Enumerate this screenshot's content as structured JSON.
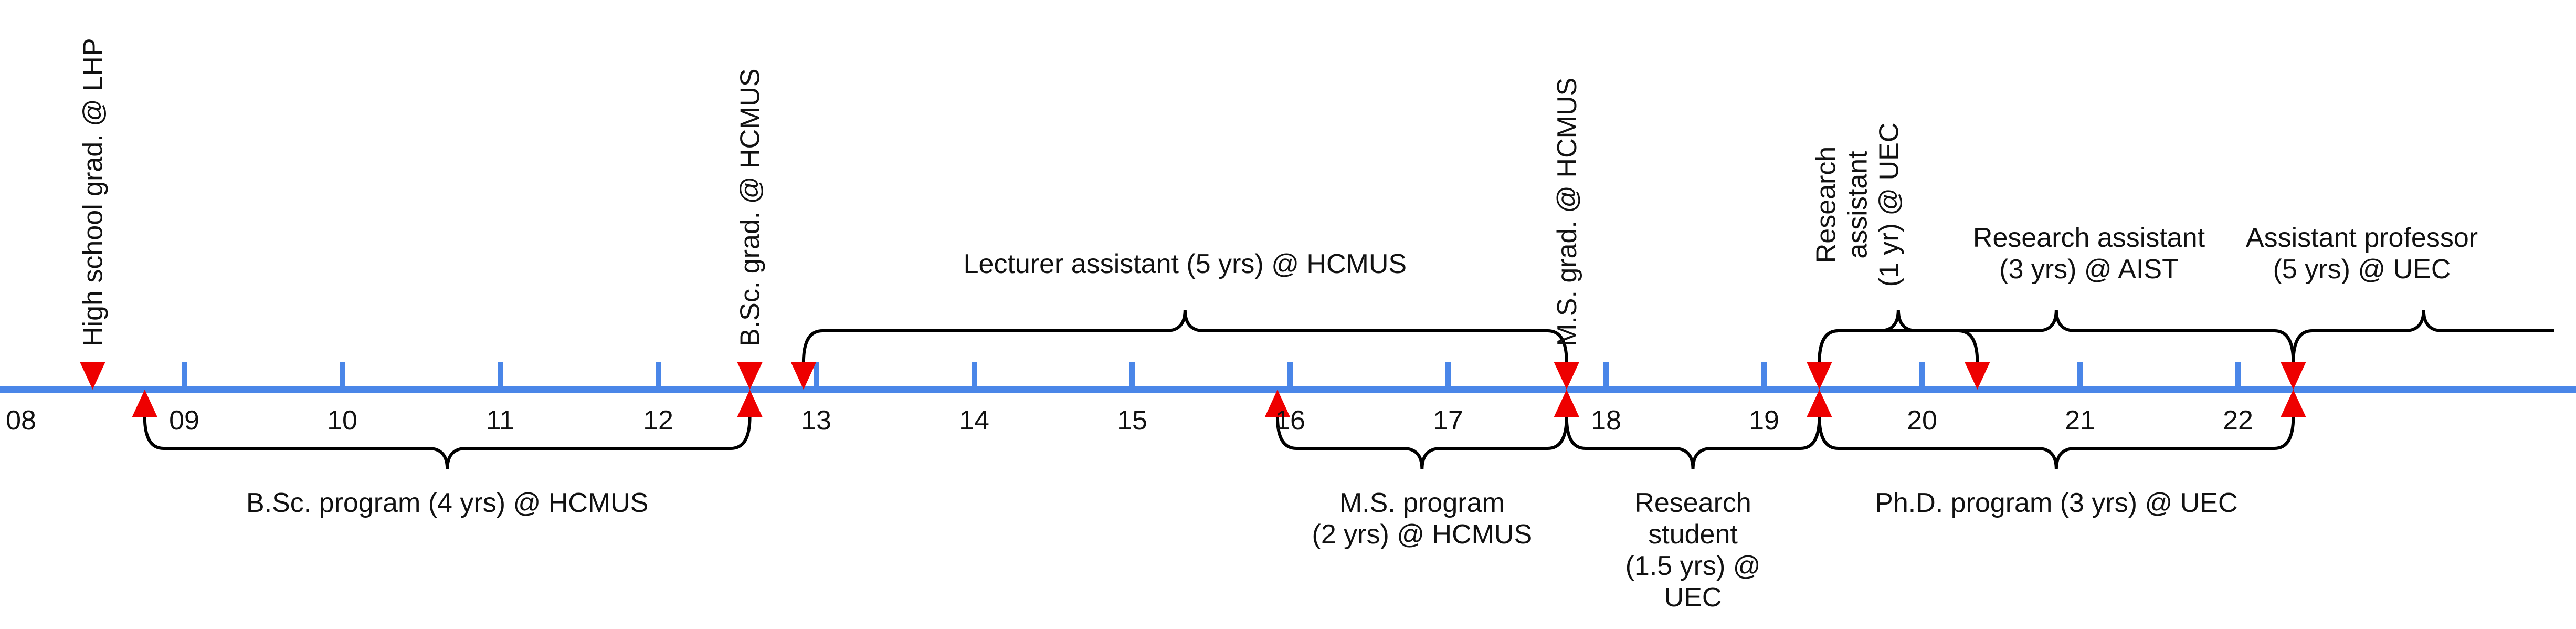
{
  "timeline": {
    "axis_color": "#4a86e8",
    "marker_color": "#ee0000",
    "bracket_color": "#000000",
    "years": [
      "08",
      "09",
      "10",
      "11",
      "12",
      "13",
      "14",
      "15",
      "16",
      "17",
      "18",
      "19",
      "20",
      "21",
      "22"
    ],
    "markers_down": [
      {
        "name": "high-school-marker",
        "at": 2008.42
      },
      {
        "name": "bsc-grad-marker",
        "at": 2012.58
      },
      {
        "name": "lecturer-start-marker",
        "at": 2012.92
      },
      {
        "name": "ms-grad-marker",
        "at": 2017.75
      },
      {
        "name": "research-student-end-marker",
        "at": 2019.35
      },
      {
        "name": "uec-ra-end-marker",
        "at": 2020.35
      },
      {
        "name": "phd-end-marker",
        "at": 2022.35
      }
    ],
    "markers_up": [
      {
        "name": "bsc-start-marker",
        "at": 2008.75
      },
      {
        "name": "bsc-end-marker",
        "at": 2012.58
      },
      {
        "name": "ms-start-marker",
        "at": 2015.92
      },
      {
        "name": "ms-end-marker",
        "at": 2017.75
      },
      {
        "name": "phd-start-marker",
        "at": 2019.35
      },
      {
        "name": "phd-end-up-marker",
        "at": 2022.35
      }
    ],
    "milestones": [
      {
        "name": "high-school-grad-label",
        "text": "High school grad. @ LHP",
        "at": 2008.42
      },
      {
        "name": "bsc-grad-label",
        "text": "B.Sc. grad. @ HCMUS",
        "at": 2012.58
      },
      {
        "name": "ms-grad-label",
        "text": "M.S. grad. @ HCMUS",
        "at": 2017.75
      }
    ],
    "spans_above": [
      {
        "name": "lecturer-assistant",
        "start": 2012.92,
        "end": 2017.75,
        "level": 1,
        "lines": [
          "Lecturer assistant (5 yrs) @ HCMUS"
        ]
      },
      {
        "name": "uec-research-assistant",
        "start": 2019.35,
        "end": 2020.35,
        "level": 0,
        "lines": [
          "Research",
          "assistant",
          "(1 yr) @ UEC"
        ],
        "rotated": true
      },
      {
        "name": "aist-research-assistant",
        "start": 2019.35,
        "end": 2022.35,
        "level": 1,
        "lines": [
          "Research assistant",
          "(3 yrs) @ AIST"
        ]
      },
      {
        "name": "assistant-professor",
        "start": 2022.35,
        "end": 2024.0,
        "level": 1,
        "lines": [
          "Assistant professor",
          "(5 yrs) @ UEC"
        ],
        "open_end": true
      }
    ],
    "spans_below": [
      {
        "name": "bsc-program",
        "start": 2008.75,
        "end": 2012.58,
        "lines": [
          "B.Sc. program (4 yrs) @ HCMUS"
        ]
      },
      {
        "name": "ms-program",
        "start": 2015.92,
        "end": 2017.75,
        "lines": [
          "M.S. program",
          "(2 yrs) @ HCMUS"
        ]
      },
      {
        "name": "research-student",
        "start": 2017.75,
        "end": 2019.35,
        "lines": [
          "Research",
          "student",
          "(1.5 yrs) @",
          "UEC"
        ]
      },
      {
        "name": "phd-program",
        "start": 2019.35,
        "end": 2022.35,
        "lines": [
          "Ph.D. program (3 yrs) @ UEC"
        ]
      }
    ]
  }
}
